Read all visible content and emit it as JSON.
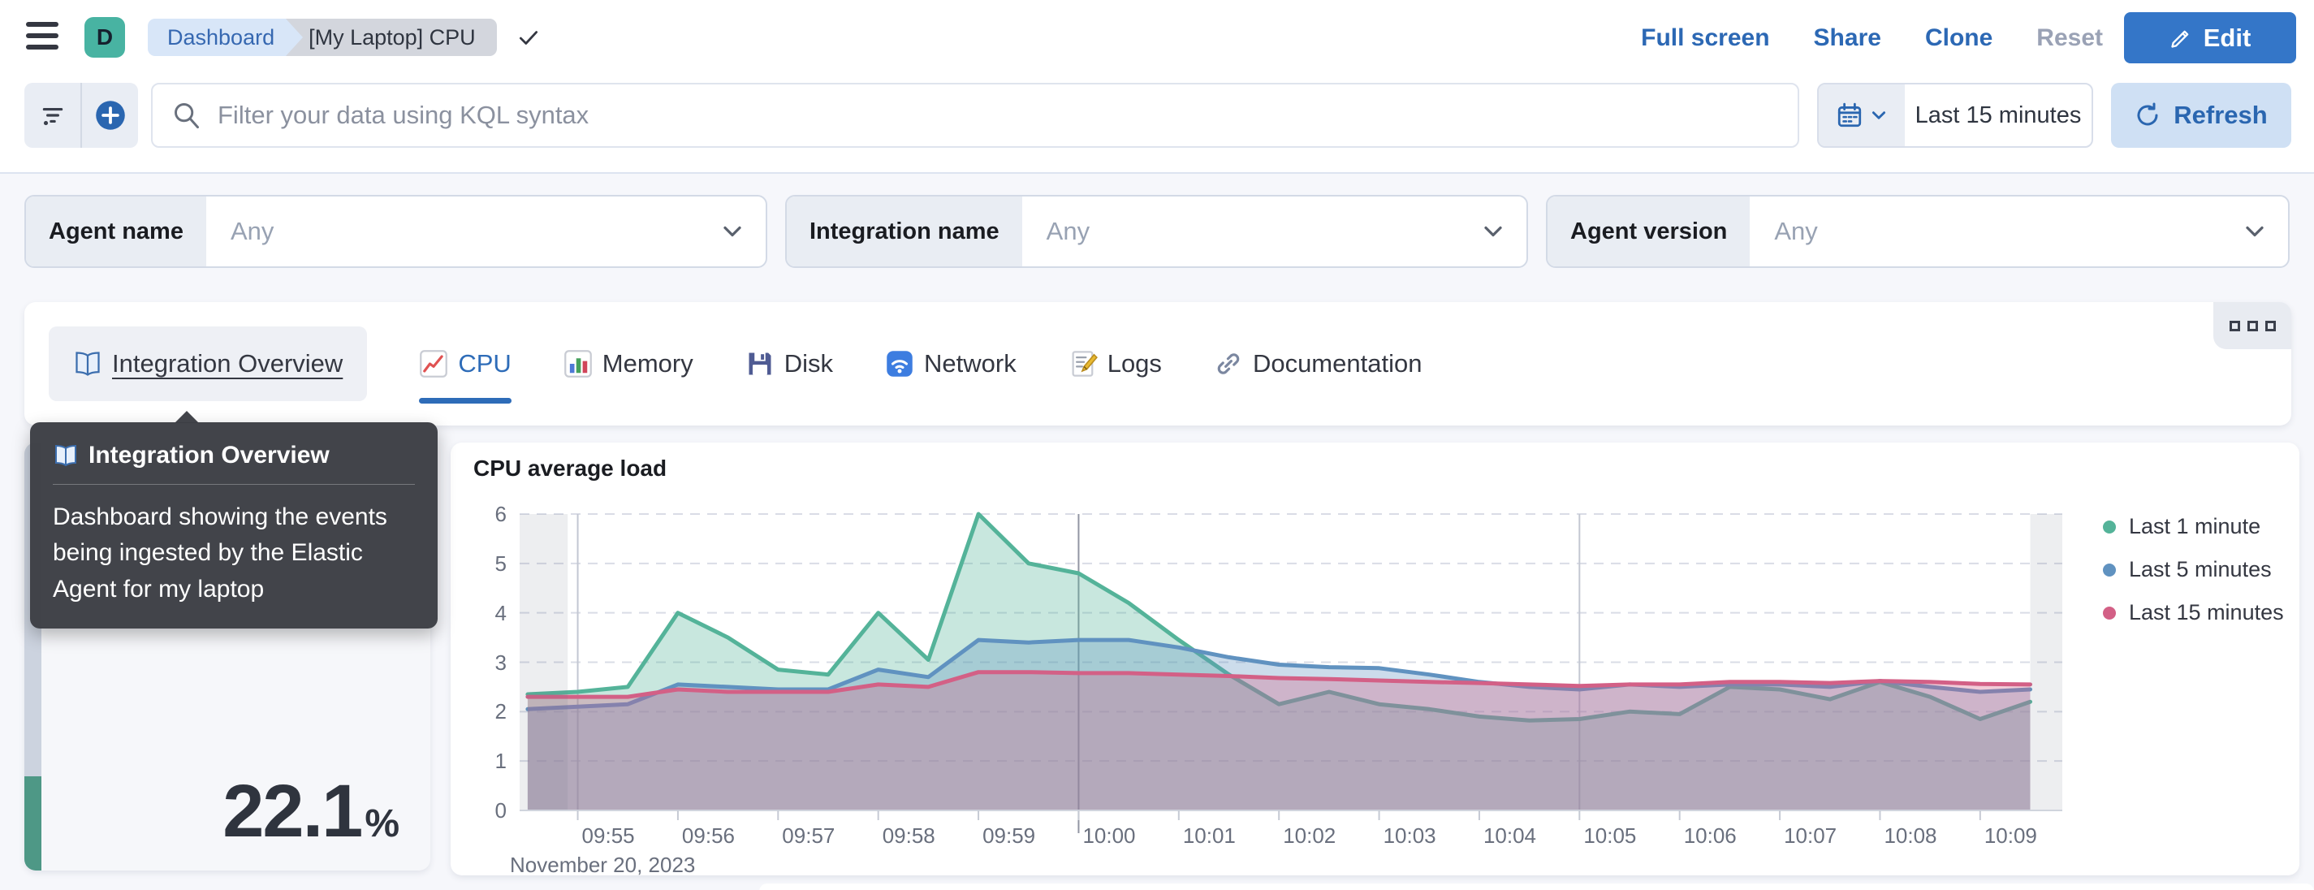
{
  "header": {
    "space_initial": "D",
    "breadcrumbs": [
      "Dashboard",
      "[My Laptop] CPU"
    ],
    "actions": [
      "Full screen",
      "Share",
      "Clone",
      "Reset"
    ],
    "edit_label": "Edit"
  },
  "query_bar": {
    "placeholder": "Filter your data using KQL syntax",
    "time_range": "Last 15 minutes",
    "refresh_label": "Refresh"
  },
  "filters": [
    {
      "label": "Agent name",
      "value": "Any"
    },
    {
      "label": "Integration name",
      "value": "Any"
    },
    {
      "label": "Agent version",
      "value": "Any"
    }
  ],
  "tabs": {
    "items": [
      {
        "label": "Integration Overview",
        "icon": "book-icon",
        "state": "hovered"
      },
      {
        "label": "CPU",
        "icon": "chart-increasing-icon",
        "state": "selected"
      },
      {
        "label": "Memory",
        "icon": "bar-chart-icon",
        "state": "normal"
      },
      {
        "label": "Disk",
        "icon": "floppy-disk-icon",
        "state": "normal"
      },
      {
        "label": "Network",
        "icon": "wireless-icon",
        "state": "normal"
      },
      {
        "label": "Logs",
        "icon": "memo-icon",
        "state": "normal"
      },
      {
        "label": "Documentation",
        "icon": "link-icon",
        "state": "normal"
      }
    ]
  },
  "tooltip": {
    "title": "Integration Overview",
    "body": "Dashboard showing the events being ingested by the Elastic Agent for my laptop"
  },
  "metric": {
    "value": "22.1",
    "unit": "%",
    "percent": 22.1,
    "bar_color": "#4e9886"
  },
  "chart_data": {
    "type": "area",
    "title": "CPU average load",
    "x": [
      "09:54:30",
      "09:55:00",
      "09:55:30",
      "09:56:00",
      "09:56:30",
      "09:57:00",
      "09:57:30",
      "09:58:00",
      "09:58:30",
      "09:59:00",
      "09:59:30",
      "10:00:00",
      "10:00:30",
      "10:01:00",
      "10:01:30",
      "10:02:00",
      "10:02:30",
      "10:03:00",
      "10:03:30",
      "10:04:00",
      "10:04:30",
      "10:05:00",
      "10:05:30",
      "10:06:00",
      "10:06:30",
      "10:07:00",
      "10:07:30",
      "10:08:00",
      "10:08:30",
      "10:09:00",
      "10:09:30"
    ],
    "series": [
      {
        "name": "Last 1 minute",
        "color": "#54b399",
        "values": [
          2.35,
          2.4,
          2.5,
          4.0,
          3.5,
          2.85,
          2.75,
          4.0,
          3.05,
          6.0,
          5.0,
          4.8,
          4.2,
          3.45,
          2.75,
          2.15,
          2.4,
          2.15,
          2.05,
          1.9,
          1.82,
          1.85,
          2.0,
          1.95,
          2.5,
          2.45,
          2.25,
          2.6,
          2.3,
          1.85,
          2.2
        ]
      },
      {
        "name": "Last 5 minutes",
        "color": "#6092c0",
        "values": [
          2.05,
          2.1,
          2.15,
          2.55,
          2.5,
          2.45,
          2.45,
          2.85,
          2.7,
          3.45,
          3.4,
          3.45,
          3.45,
          3.3,
          3.1,
          2.95,
          2.9,
          2.88,
          2.75,
          2.6,
          2.5,
          2.45,
          2.55,
          2.5,
          2.55,
          2.55,
          2.5,
          2.62,
          2.5,
          2.4,
          2.45
        ]
      },
      {
        "name": "Last 15 minutes",
        "color": "#d36086",
        "values": [
          2.3,
          2.3,
          2.3,
          2.45,
          2.4,
          2.4,
          2.4,
          2.55,
          2.5,
          2.8,
          2.8,
          2.78,
          2.78,
          2.75,
          2.72,
          2.68,
          2.66,
          2.63,
          2.6,
          2.58,
          2.55,
          2.52,
          2.55,
          2.55,
          2.6,
          2.6,
          2.58,
          2.62,
          2.6,
          2.56,
          2.55
        ]
      }
    ],
    "ylim": [
      0,
      6
    ],
    "yticks": [
      0,
      1,
      2,
      3,
      4,
      5,
      6
    ],
    "xtick_labels": [
      "09:55",
      "09:56",
      "09:57",
      "09:58",
      "09:59",
      "10:00",
      "10:01",
      "10:02",
      "10:03",
      "10:04",
      "10:05",
      "10:06",
      "10:07",
      "10:08",
      "10:09"
    ],
    "x_date_label": "November 20, 2023",
    "legend_position": "right",
    "grid": {
      "h_dashed": true,
      "v_lines": [
        "09:55",
        "10:00",
        "10:05"
      ]
    },
    "partial_buckets": {
      "left": true,
      "right": true
    }
  }
}
